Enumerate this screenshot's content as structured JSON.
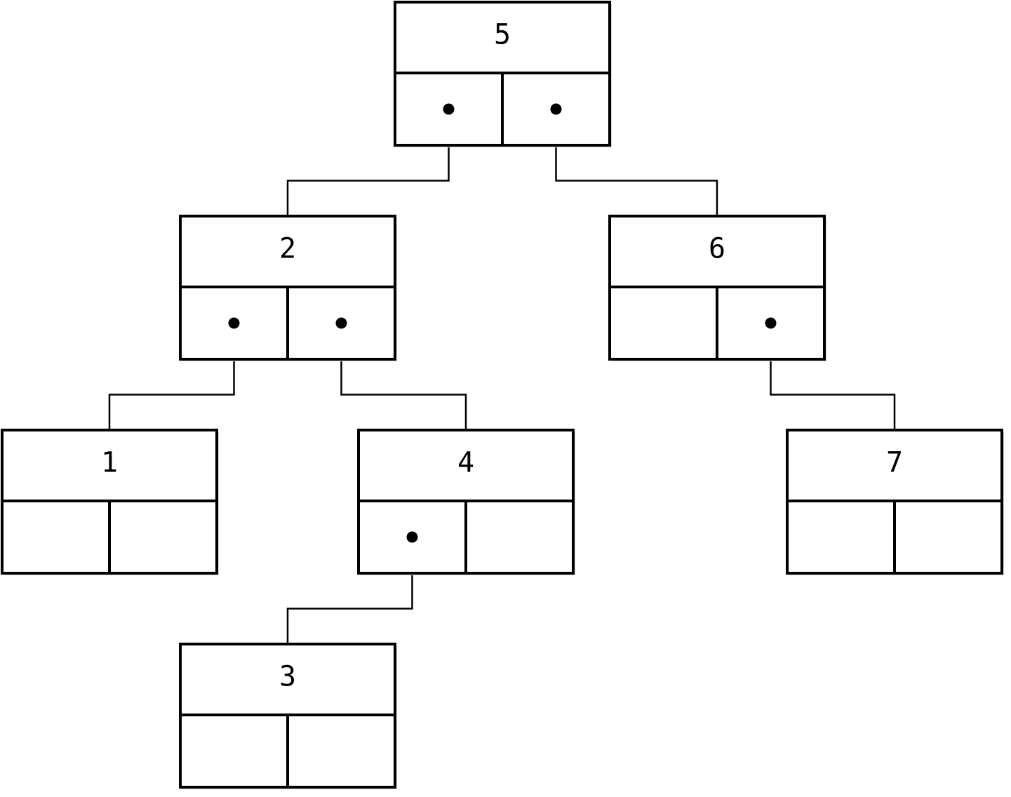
{
  "tree": {
    "root": "node-5",
    "nodes": [
      {
        "id": "node-5",
        "value": "5",
        "left": "node-2",
        "right": "node-6"
      },
      {
        "id": "node-2",
        "value": "2",
        "left": "node-1",
        "right": "node-4"
      },
      {
        "id": "node-6",
        "value": "6",
        "left": null,
        "right": "node-7"
      },
      {
        "id": "node-1",
        "value": "1",
        "left": null,
        "right": null
      },
      {
        "id": "node-4",
        "value": "4",
        "left": "node-3",
        "right": null
      },
      {
        "id": "node-7",
        "value": "7",
        "left": null,
        "right": null
      },
      {
        "id": "node-3",
        "value": "3",
        "left": null,
        "right": null
      }
    ]
  },
  "colors": {
    "stroke": "#000000",
    "background": "#ffffff"
  }
}
